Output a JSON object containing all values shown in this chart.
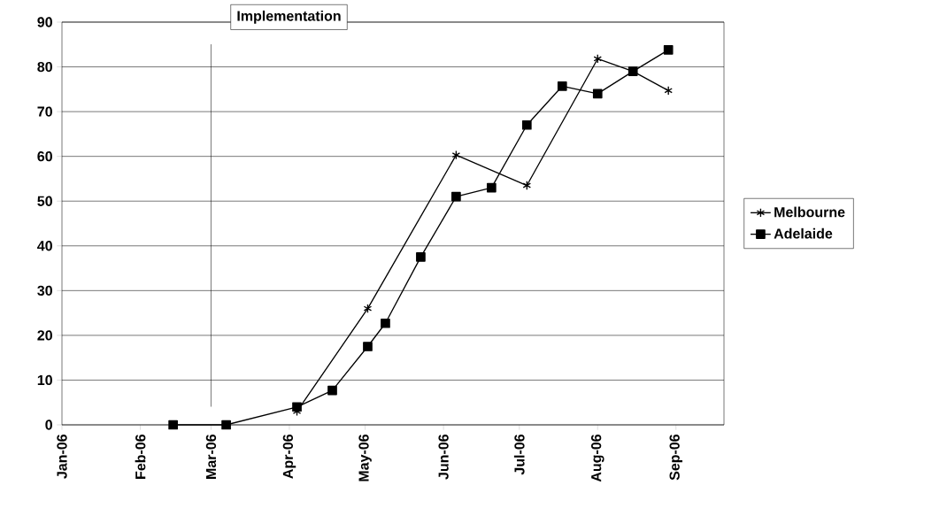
{
  "chart_data": {
    "type": "line",
    "x": [
      "2006-02-14",
      "2006-03-07",
      "2006-04-04",
      "2006-04-18",
      "2006-05-02",
      "2006-05-09",
      "2006-05-23",
      "2006-06-06",
      "2006-06-20",
      "2006-07-04",
      "2006-07-18",
      "2006-08-01",
      "2006-08-15",
      "2006-08-29"
    ],
    "series": [
      {
        "name": "Melbourne",
        "color": "#000000",
        "marker": "cross",
        "x": [
          "2006-04-04",
          "2006-05-02",
          "2006-06-06",
          "2006-07-04",
          "2006-08-01",
          "2006-08-15",
          "2006-08-29"
        ],
        "values": [
          3,
          26,
          60.3,
          53.5,
          81.8,
          79,
          74.7
        ]
      },
      {
        "name": "Adelaide",
        "color": "#000000",
        "marker": "square",
        "values": [
          0,
          0,
          4,
          7.7,
          17.5,
          22.7,
          37.5,
          51,
          53,
          67,
          75.7,
          74,
          79,
          83.8
        ]
      }
    ],
    "xlim": [
      "2006-01-01",
      "2006-09-20"
    ],
    "xticks": [
      {
        "value": "2006-01-01",
        "label": "Jan-06"
      },
      {
        "value": "2006-02-01",
        "label": "Feb-06"
      },
      {
        "value": "2006-03-01",
        "label": "Mar-06"
      },
      {
        "value": "2006-04-01",
        "label": "Apr-06"
      },
      {
        "value": "2006-05-01",
        "label": "May-06"
      },
      {
        "value": "2006-06-01",
        "label": "Jun-06"
      },
      {
        "value": "2006-07-01",
        "label": "Jul-06"
      },
      {
        "value": "2006-08-01",
        "label": "Aug-06"
      },
      {
        "value": "2006-09-01",
        "label": "Sep-06"
      }
    ],
    "ylim": [
      0,
      90
    ],
    "yticks": [
      0,
      10,
      20,
      30,
      40,
      50,
      60,
      70,
      80,
      90
    ],
    "grid": "y",
    "legend": "right",
    "line_style": "solid",
    "ref_lines": [
      {
        "axis": "x",
        "value": "2006-03-01",
        "label": "Implementation"
      }
    ]
  }
}
